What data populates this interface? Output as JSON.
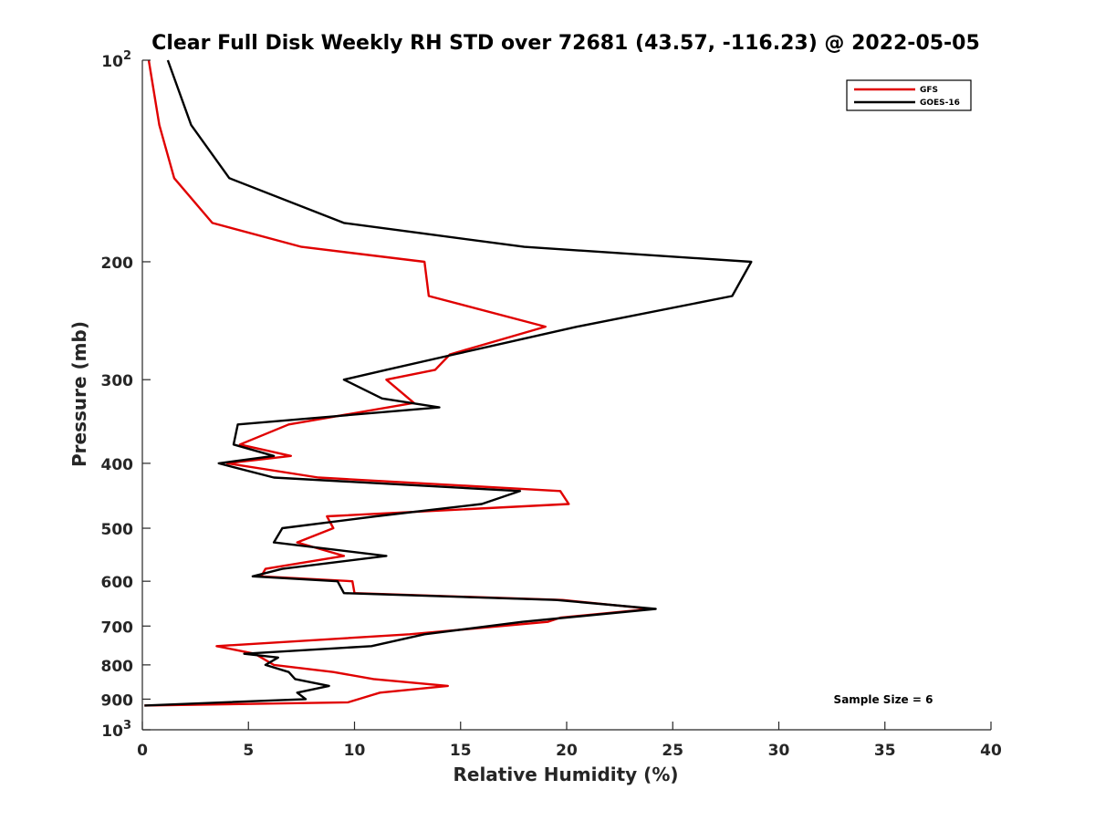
{
  "chart_data": {
    "type": "line",
    "title": "Clear Full Disk Weekly RH STD over 72681 (43.57, -116.23) @ 2022-05-05",
    "xlabel": "Relative Humidity (%)",
    "ylabel": "Pressure (mb)",
    "xlim": [
      0,
      40
    ],
    "ylim": [
      100,
      1000
    ],
    "y_scale": "log",
    "y_reversed": true,
    "x_ticks": [
      "0",
      "5",
      "10",
      "15",
      "20",
      "25",
      "30",
      "35",
      "40"
    ],
    "x_tick_values": [
      0,
      5,
      10,
      15,
      20,
      25,
      30,
      35,
      40
    ],
    "y_ticks": [
      {
        "value": 100,
        "label": "10",
        "sup": "2"
      },
      {
        "value": 200,
        "label": "200",
        "sup": ""
      },
      {
        "value": 300,
        "label": "300",
        "sup": ""
      },
      {
        "value": 400,
        "label": "400",
        "sup": ""
      },
      {
        "value": 500,
        "label": "500",
        "sup": ""
      },
      {
        "value": 600,
        "label": "600",
        "sup": ""
      },
      {
        "value": 700,
        "label": "700",
        "sup": ""
      },
      {
        "value": 800,
        "label": "800",
        "sup": ""
      },
      {
        "value": 900,
        "label": "900",
        "sup": ""
      },
      {
        "value": 1000,
        "label": "10",
        "sup": "3"
      }
    ],
    "legend_position": "top-right",
    "annotation": "Sample Size = 6",
    "series": [
      {
        "name": "GFS",
        "color": "#e00000",
        "points": [
          [
            0.3,
            100
          ],
          [
            0.8,
            125
          ],
          [
            1.5,
            150
          ],
          [
            3.3,
            175
          ],
          [
            7.5,
            190
          ],
          [
            13.3,
            200
          ],
          [
            13.5,
            225
          ],
          [
            19.0,
            250
          ],
          [
            14.5,
            275
          ],
          [
            13.8,
            290
          ],
          [
            11.5,
            300
          ],
          [
            12.8,
            325
          ],
          [
            6.9,
            350
          ],
          [
            4.6,
            375
          ],
          [
            7.0,
            390
          ],
          [
            4.0,
            400
          ],
          [
            8.3,
            420
          ],
          [
            19.7,
            440
          ],
          [
            20.1,
            460
          ],
          [
            8.7,
            480
          ],
          [
            9.0,
            500
          ],
          [
            7.3,
            525
          ],
          [
            9.5,
            550
          ],
          [
            5.8,
            575
          ],
          [
            5.6,
            590
          ],
          [
            9.9,
            600
          ],
          [
            10.0,
            625
          ],
          [
            19.8,
            640
          ],
          [
            24.0,
            660
          ],
          [
            19.7,
            680
          ],
          [
            19.1,
            690
          ],
          [
            12.6,
            720
          ],
          [
            3.5,
            750
          ],
          [
            5.3,
            770
          ],
          [
            6.2,
            800
          ],
          [
            9.0,
            820
          ],
          [
            10.9,
            840
          ],
          [
            14.4,
            860
          ],
          [
            11.2,
            880
          ],
          [
            9.7,
            910
          ],
          [
            0.1,
            920
          ]
        ]
      },
      {
        "name": "GOES-16",
        "color": "#000000",
        "points": [
          [
            1.2,
            100
          ],
          [
            2.3,
            125
          ],
          [
            4.1,
            150
          ],
          [
            9.5,
            175
          ],
          [
            18.0,
            190
          ],
          [
            28.7,
            200
          ],
          [
            27.8,
            225
          ],
          [
            20.5,
            250
          ],
          [
            14.7,
            275
          ],
          [
            11.5,
            290
          ],
          [
            9.5,
            300
          ],
          [
            11.3,
            320
          ],
          [
            14.0,
            330
          ],
          [
            4.5,
            350
          ],
          [
            4.3,
            375
          ],
          [
            6.2,
            390
          ],
          [
            3.6,
            400
          ],
          [
            6.2,
            420
          ],
          [
            17.8,
            440
          ],
          [
            16.0,
            460
          ],
          [
            11.0,
            480
          ],
          [
            6.6,
            500
          ],
          [
            6.2,
            525
          ],
          [
            11.5,
            550
          ],
          [
            6.6,
            575
          ],
          [
            5.2,
            590
          ],
          [
            9.2,
            600
          ],
          [
            9.5,
            625
          ],
          [
            19.5,
            640
          ],
          [
            24.2,
            660
          ],
          [
            17.9,
            690
          ],
          [
            13.3,
            720
          ],
          [
            10.8,
            750
          ],
          [
            4.8,
            770
          ],
          [
            6.4,
            780
          ],
          [
            5.8,
            800
          ],
          [
            6.9,
            820
          ],
          [
            7.2,
            840
          ],
          [
            8.8,
            860
          ],
          [
            7.3,
            880
          ],
          [
            7.7,
            900
          ],
          [
            0.1,
            920
          ]
        ]
      }
    ]
  }
}
